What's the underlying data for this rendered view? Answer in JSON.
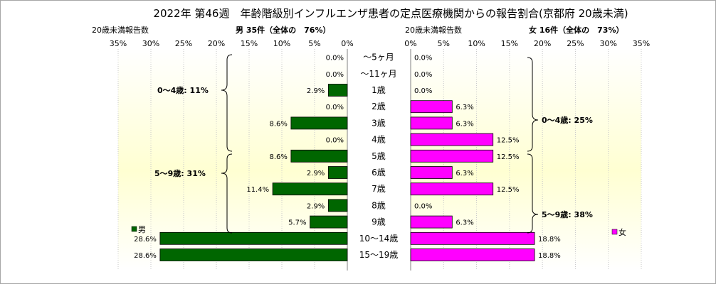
{
  "chart_data": {
    "type": "bar",
    "title": "2022年 第46週　年齢階級別インフルエンザ患者の定点医療機関からの報告割合(京都府 20歳未満)",
    "categories": [
      "～5ヶ月",
      "～11ヶ月",
      "1歳",
      "2歳",
      "3歳",
      "4歳",
      "5歳",
      "6歳",
      "7歳",
      "8歳",
      "9歳",
      "10～14歳",
      "15～19歳"
    ],
    "axis_caption": "20歳未満報告数",
    "male": {
      "header": "男 35件（全体の　76%）",
      "legend": "男",
      "color": "#006600",
      "values": [
        0.0,
        0.0,
        2.9,
        0.0,
        8.6,
        0.0,
        8.6,
        2.9,
        11.4,
        2.9,
        5.7,
        28.6,
        28.6
      ],
      "value_labels": [
        "0.0%",
        "0.0%",
        "2.9%",
        "0.0%",
        "8.6%",
        "0.0%",
        "8.6%",
        "2.9%",
        "11.4%",
        "2.9%",
        "5.7%",
        "28.6%",
        "28.6%"
      ],
      "group_labels": [
        "0～4歳: 11%",
        "5～9歳: 31%"
      ]
    },
    "female": {
      "header": "女 16件（全体の　73%）",
      "legend": "女",
      "color": "#ff00ff",
      "values": [
        0.0,
        0.0,
        0.0,
        6.3,
        6.3,
        12.5,
        12.5,
        6.3,
        12.5,
        0.0,
        6.3,
        18.8,
        18.8
      ],
      "value_labels": [
        "0.0%",
        "0.0%",
        "0.0%",
        "6.3%",
        "6.3%",
        "12.5%",
        "12.5%",
        "6.3%",
        "12.5%",
        "0.0%",
        "6.3%",
        "18.8%",
        "18.8%"
      ],
      "group_labels": [
        "0～4歳: 25%",
        "5～9歳: 38%"
      ]
    },
    "x_ticks": [
      35,
      30,
      25,
      20,
      15,
      10,
      5,
      0
    ],
    "x_tick_labels": [
      "35%",
      "30%",
      "25%",
      "20%",
      "15%",
      "10%",
      "5%",
      "0%"
    ],
    "x_ticks_right": [
      0,
      5,
      10,
      15,
      20,
      25,
      30,
      35
    ],
    "x_tick_labels_right": [
      "0%",
      "5%",
      "10%",
      "15%",
      "20%",
      "25%",
      "30%",
      "35%"
    ],
    "xlim": [
      0,
      35
    ],
    "grid": true
  }
}
